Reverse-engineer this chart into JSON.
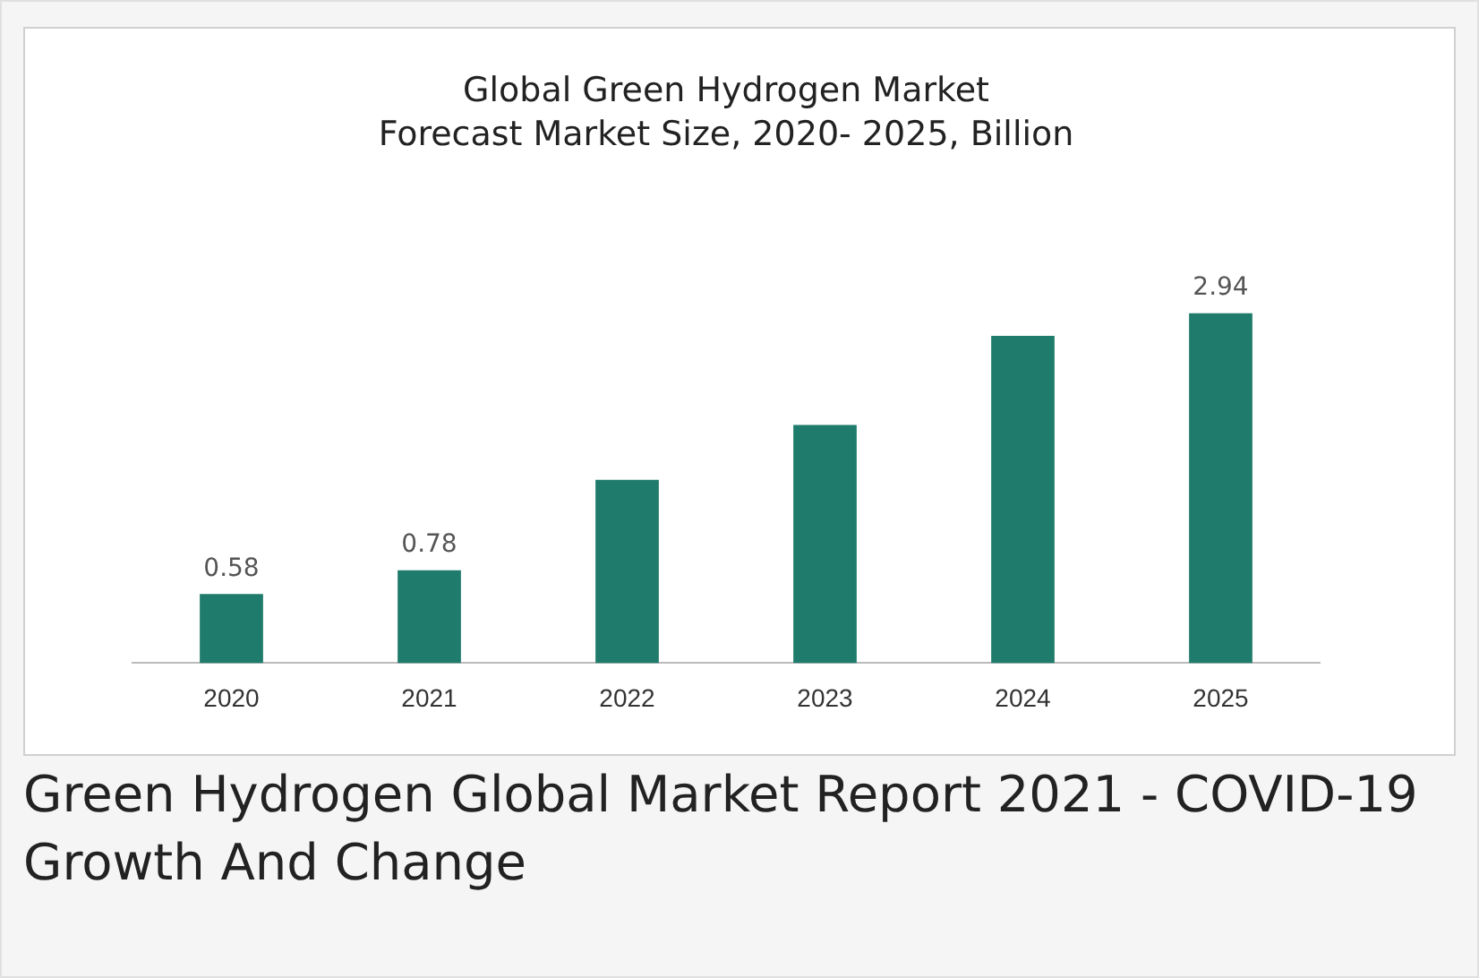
{
  "chart_data": {
    "type": "bar",
    "title": "Global Green Hydrogen Market",
    "subtitle": "Forecast Market Size, 2020- 2025, Billion",
    "categories": [
      "2020",
      "2021",
      "2022",
      "2023",
      "2024",
      "2025"
    ],
    "values": [
      0.58,
      0.78,
      1.54,
      2.0,
      2.75,
      2.94
    ],
    "value_labels": [
      "0.58",
      "0.78",
      null,
      null,
      null,
      "2.94"
    ],
    "color": "#1f7b6b",
    "grid": false,
    "legend": false,
    "annotations": [
      "Green Hydrogen Global Market Report 2021 - COVID-19 Growth And Change"
    ]
  }
}
